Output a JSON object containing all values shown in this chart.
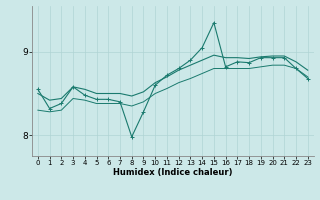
{
  "title": "",
  "xlabel": "Humidex (Indice chaleur)",
  "background_color": "#cce8e8",
  "line_color": "#1a7a6e",
  "x": [
    0,
    1,
    2,
    3,
    4,
    5,
    6,
    7,
    8,
    9,
    10,
    11,
    12,
    13,
    14,
    15,
    16,
    17,
    18,
    19,
    20,
    21,
    22,
    23
  ],
  "line1_volatile": [
    8.55,
    8.32,
    8.38,
    8.58,
    8.48,
    8.43,
    8.43,
    8.4,
    7.98,
    8.28,
    8.6,
    8.72,
    8.8,
    8.9,
    9.05,
    9.35,
    8.82,
    8.88,
    8.87,
    8.93,
    8.93,
    8.93,
    8.8,
    8.68
  ],
  "line2_upper": [
    8.5,
    8.42,
    8.44,
    8.58,
    8.55,
    8.5,
    8.5,
    8.5,
    8.47,
    8.52,
    8.63,
    8.7,
    8.78,
    8.84,
    8.9,
    8.96,
    8.93,
    8.93,
    8.92,
    8.94,
    8.95,
    8.95,
    8.88,
    8.78
  ],
  "line3_lower": [
    8.3,
    8.28,
    8.3,
    8.44,
    8.42,
    8.38,
    8.38,
    8.38,
    8.35,
    8.4,
    8.5,
    8.56,
    8.63,
    8.68,
    8.74,
    8.8,
    8.8,
    8.8,
    8.8,
    8.82,
    8.84,
    8.84,
    8.8,
    8.7
  ],
  "yticks": [
    8,
    9
  ],
  "ylim": [
    7.75,
    9.55
  ],
  "xlim": [
    -0.5,
    23.5
  ],
  "xticks": [
    0,
    1,
    2,
    3,
    4,
    5,
    6,
    7,
    8,
    9,
    10,
    11,
    12,
    13,
    14,
    15,
    16,
    17,
    18,
    19,
    20,
    21,
    22,
    23
  ],
  "xlabel_fontsize": 6.0,
  "tick_fontsize": 5.0,
  "ytick_fontsize": 6.5
}
